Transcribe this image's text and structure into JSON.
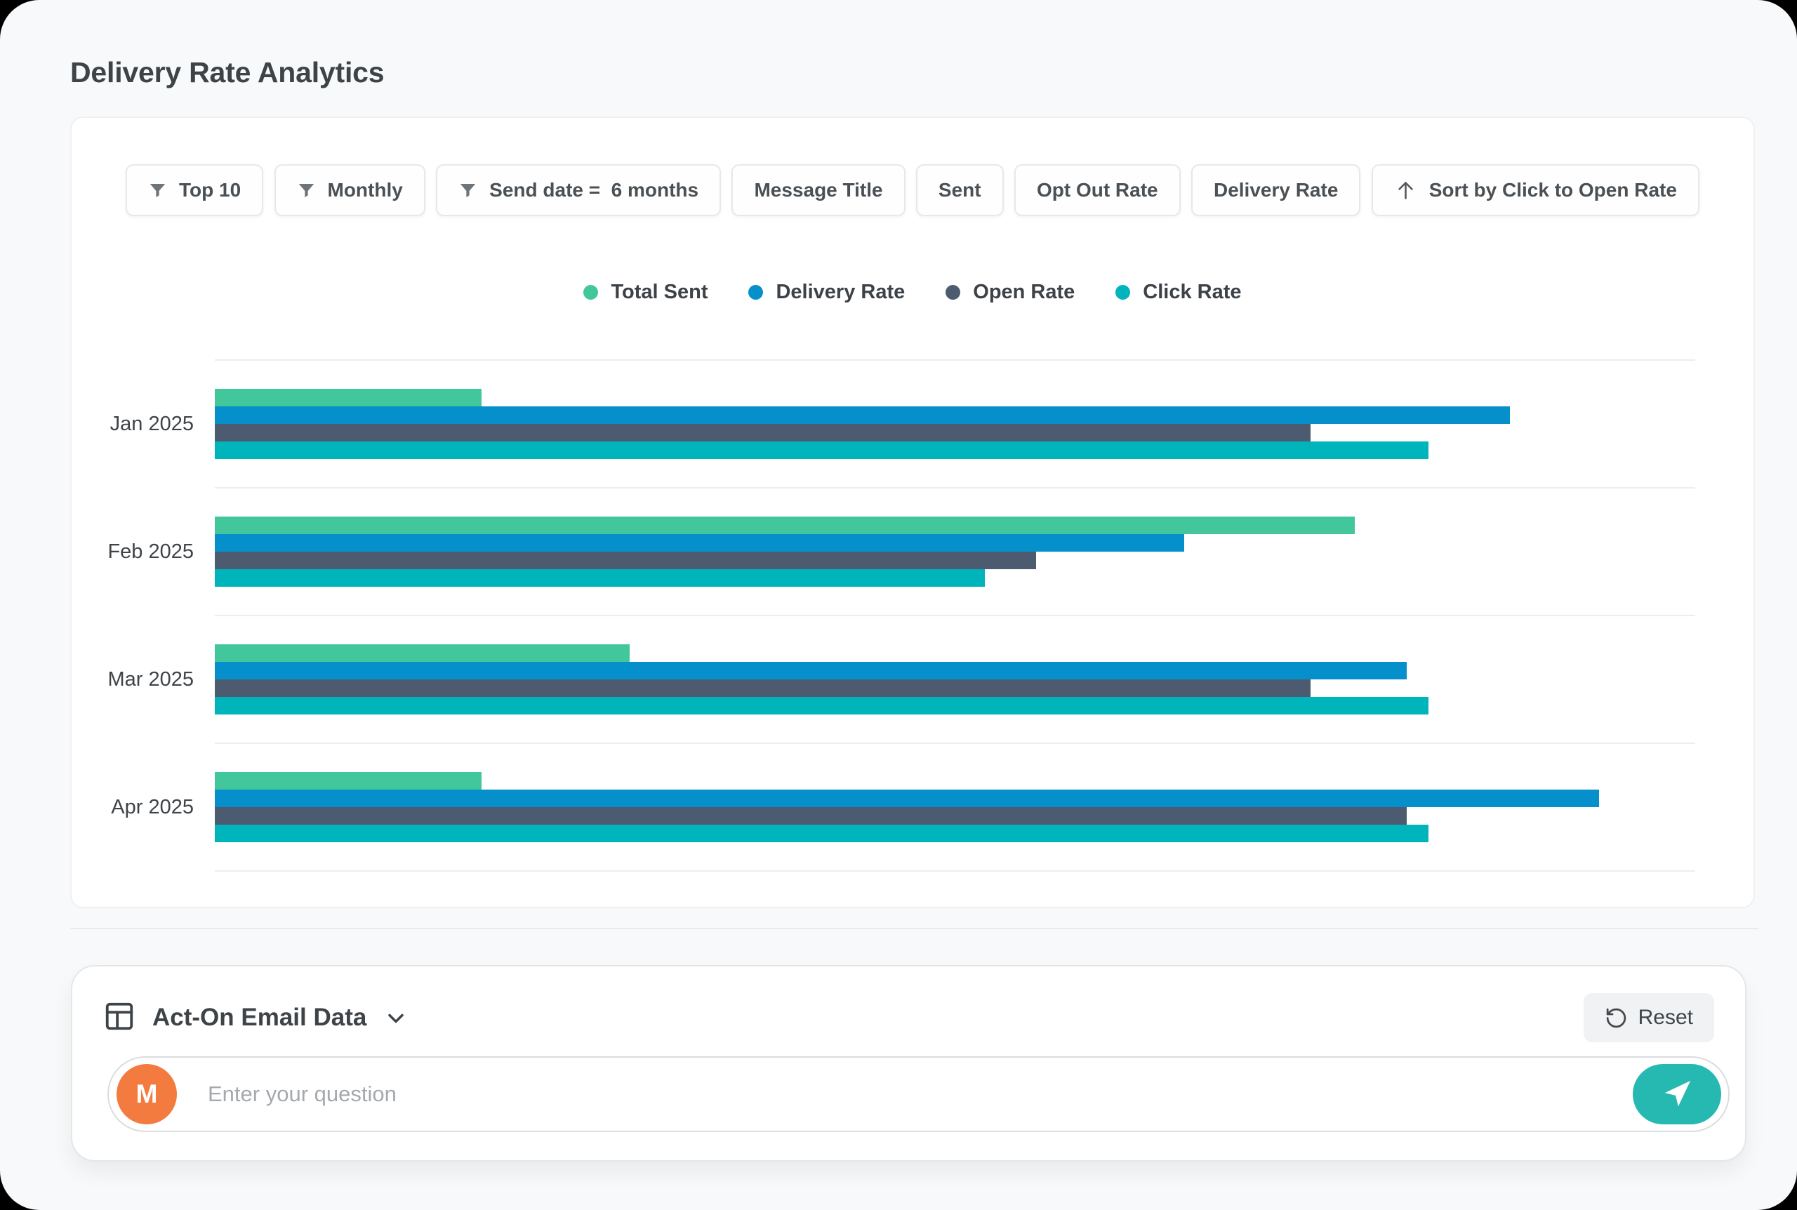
{
  "page": {
    "title": "Delivery Rate Analytics"
  },
  "filters": {
    "chips": [
      {
        "label": "Top 10",
        "icon": "filter-icon"
      },
      {
        "label": "Monthly",
        "icon": "filter-icon"
      },
      {
        "label": "Send date =  6 months",
        "icon": "filter-icon"
      },
      {
        "label": "Message Title",
        "icon": null
      },
      {
        "label": "Sent",
        "icon": null
      },
      {
        "label": "Opt Out Rate",
        "icon": null
      },
      {
        "label": "Delivery Rate",
        "icon": null
      },
      {
        "label": "Sort by Click to Open Rate",
        "icon": "sort-up-icon"
      }
    ]
  },
  "chart_data": {
    "type": "bar",
    "orientation": "horizontal",
    "title": "Delivery Rate Analytics",
    "categories": [
      "Jan 2025",
      "Feb 2025",
      "Mar 2025",
      "Apr 2025"
    ],
    "series": [
      {
        "name": "Total Sent",
        "color": "#41C79B",
        "values": [
          18,
          77,
          28,
          18
        ]
      },
      {
        "name": "Delivery Rate",
        "color": "#0590CB",
        "values": [
          87.5,
          65.5,
          80.5,
          93.5
        ]
      },
      {
        "name": "Open Rate",
        "color": "#4D5B70",
        "values": [
          74,
          55.5,
          74,
          80.5
        ]
      },
      {
        "name": "Click Rate",
        "color": "#00B4BC",
        "values": [
          82,
          52,
          82,
          82
        ]
      }
    ],
    "value_unit": "percent of axis width (no numeric axis labels shown)",
    "xlim": [
      0,
      100
    ],
    "grid": "horizontal row separators only",
    "legend_position": "top-center"
  },
  "footer": {
    "source_label": "Act-On Email Data",
    "source_icon": "table-icon",
    "expand_icon": "chevron-down-icon",
    "reset_label": "Reset",
    "reset_icon": "reset-ccw-icon",
    "avatar_initial": "M",
    "input_placeholder": "Enter your question",
    "send_icon": "send-plane-icon"
  },
  "colors": {
    "canvas_bg": "#F8F9FA",
    "card_bg": "#FFFFFF",
    "separator": "#ECEDEF",
    "chip_border": "#E7E8EA",
    "text_dark": "#3E4347",
    "placeholder": "#A5A9AE",
    "avatar_orange": "#F37B40",
    "send_teal": "#26B9B1"
  }
}
